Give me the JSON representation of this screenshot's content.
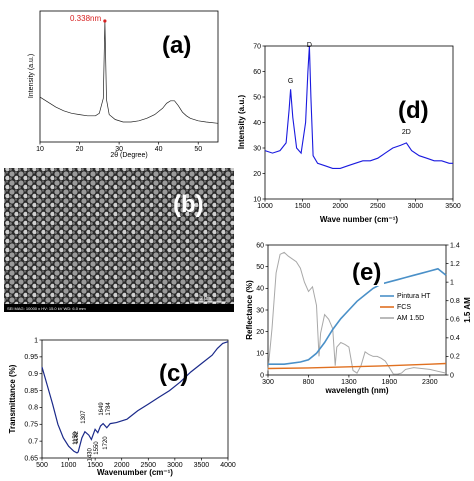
{
  "chart_data": [
    {
      "panel": "a",
      "type": "line",
      "label": "(a)",
      "xlabel": "2θ (Degree)",
      "ylabel": "Intensity (a.u.)",
      "xlim": [
        10,
        55
      ],
      "xticks": [
        10,
        20,
        30,
        40,
        50
      ],
      "annotation": "0.338nm",
      "annotation_color": "#d62020",
      "peak_x": 26.4,
      "x": [
        10,
        12,
        14,
        16,
        18,
        20,
        22,
        24,
        25,
        26,
        26.4,
        26.8,
        27.5,
        29,
        31,
        33,
        35,
        37,
        39,
        41,
        42,
        43,
        44,
        45,
        46,
        47,
        48,
        50,
        52,
        55
      ],
      "y": [
        0.36,
        0.32,
        0.28,
        0.25,
        0.23,
        0.22,
        0.21,
        0.21,
        0.23,
        0.35,
        0.97,
        0.34,
        0.22,
        0.18,
        0.16,
        0.16,
        0.17,
        0.19,
        0.22,
        0.27,
        0.31,
        0.33,
        0.33,
        0.29,
        0.24,
        0.21,
        0.19,
        0.17,
        0.16,
        0.15
      ]
    },
    {
      "panel": "b",
      "type": "image",
      "label": "(b)",
      "caption": "SEI  MAG: 10000 x  HV: 15.0 kV  WD: 6.0 mm",
      "scale_bar": "2 μm"
    },
    {
      "panel": "c",
      "type": "line",
      "label": "(c)",
      "xlabel": "Wavenumber (cm⁻¹)",
      "ylabel": "Transmittance (%)",
      "xlim": [
        500,
        4000
      ],
      "ylim": [
        0.65,
        1.0
      ],
      "xticks": [
        500,
        1000,
        1500,
        2000,
        2500,
        3000,
        3500,
        4000
      ],
      "yticks": [
        0.65,
        0.7,
        0.75,
        0.8,
        0.85,
        0.9,
        0.95,
        1.0
      ],
      "line_color": "#1b2a8a",
      "peak_labels": [
        "1182",
        "1159",
        "1307",
        "1430",
        "1550",
        "1649",
        "1784",
        "1720"
      ],
      "x": [
        500,
        600,
        700,
        800,
        900,
        1000,
        1100,
        1159,
        1182,
        1250,
        1307,
        1380,
        1430,
        1500,
        1550,
        1600,
        1649,
        1720,
        1784,
        1900,
        2100,
        2300,
        2500,
        2700,
        2900,
        3100,
        3300,
        3500,
        3700,
        3800,
        3900,
        4000
      ],
      "y": [
        0.92,
        0.865,
        0.81,
        0.75,
        0.71,
        0.685,
        0.67,
        0.665,
        0.668,
        0.71,
        0.728,
        0.718,
        0.705,
        0.735,
        0.725,
        0.745,
        0.752,
        0.74,
        0.752,
        0.755,
        0.765,
        0.79,
        0.81,
        0.83,
        0.85,
        0.875,
        0.905,
        0.93,
        0.955,
        0.975,
        0.99,
        0.995
      ]
    },
    {
      "panel": "d",
      "type": "line",
      "label": "(d)",
      "xlabel": "Wave number (cm⁻¹)",
      "ylabel": "Intensity (a.u.)",
      "xlim": [
        1000,
        3500
      ],
      "ylim": [
        10,
        70
      ],
      "xticks": [
        1000,
        1500,
        2000,
        2500,
        3000,
        3500
      ],
      "yticks": [
        10,
        20,
        30,
        40,
        50,
        60,
        70
      ],
      "line_color": "#1a1adf",
      "band_labels": [
        "G",
        "D",
        "2D"
      ],
      "band_x": [
        1340,
        1590,
        2880
      ],
      "band_y": [
        54,
        68,
        34
      ],
      "x": [
        1000,
        1100,
        1200,
        1280,
        1320,
        1340,
        1370,
        1420,
        1480,
        1540,
        1570,
        1590,
        1610,
        1640,
        1700,
        1800,
        1900,
        2000,
        2100,
        2200,
        2300,
        2400,
        2500,
        2600,
        2700,
        2800,
        2880,
        2950,
        3050,
        3150,
        3250,
        3350,
        3450,
        3500
      ],
      "y": [
        29,
        28,
        29,
        32,
        45,
        53,
        42,
        30,
        28,
        40,
        60,
        70,
        50,
        27,
        24,
        23,
        22,
        22,
        23,
        24,
        25,
        25,
        26,
        28,
        30,
        31,
        32,
        29,
        27,
        26,
        25,
        25,
        24,
        24
      ]
    },
    {
      "panel": "e",
      "type": "line",
      "label": "(e)",
      "xlabel": "wavelength (nm)",
      "ylabel": "Reflectance (%)",
      "y2label": "1.5 AM",
      "xlim": [
        300,
        2500
      ],
      "ylim": [
        0,
        60
      ],
      "y2lim": [
        0,
        1.4
      ],
      "xticks": [
        300,
        800,
        1300,
        1800,
        2300
      ],
      "yticks": [
        0,
        10,
        20,
        30,
        40,
        50,
        60
      ],
      "y2ticks": [
        0,
        0.2,
        0.4,
        0.6,
        0.8,
        1.0,
        1.2,
        1.4
      ],
      "legend_position": "right",
      "series": [
        {
          "name": "Pintura HT",
          "color": "#4a90c8",
          "axis": "left",
          "x": [
            300,
            500,
            700,
            800,
            900,
            1000,
            1100,
            1200,
            1300,
            1400,
            1500,
            1600,
            1700,
            1800,
            1900,
            2000,
            2100,
            2200,
            2300,
            2400,
            2500
          ],
          "y": [
            5,
            5,
            6,
            7,
            10,
            15,
            21,
            26,
            30,
            34,
            37,
            40,
            42,
            43,
            44,
            45,
            46,
            47,
            48,
            49,
            46
          ]
        },
        {
          "name": "FCS",
          "color": "#e07020",
          "axis": "left",
          "x": [
            300,
            800,
            1300,
            1800,
            2300,
            2500
          ],
          "y": [
            3,
            3.3,
            3.8,
            4.3,
            5.0,
            5.3
          ]
        },
        {
          "name": "AM 1.5D",
          "color": "#a8a8a8",
          "axis": "right",
          "x": [
            300,
            350,
            400,
            450,
            500,
            550,
            600,
            650,
            700,
            750,
            800,
            850,
            900,
            930,
            950,
            1000,
            1050,
            1100,
            1130,
            1150,
            1200,
            1250,
            1300,
            1350,
            1400,
            1450,
            1500,
            1550,
            1600,
            1650,
            1700,
            1750,
            1800,
            1850,
            1900,
            1950,
            2000,
            2100,
            2200,
            2300,
            2400,
            2500
          ],
          "y": [
            0.05,
            0.5,
            1.1,
            1.3,
            1.32,
            1.28,
            1.25,
            1.22,
            1.15,
            1.0,
            0.9,
            0.95,
            0.75,
            0.2,
            0.45,
            0.65,
            0.6,
            0.5,
            0.1,
            0.3,
            0.35,
            0.33,
            0.3,
            0.05,
            0.02,
            0.1,
            0.25,
            0.22,
            0.2,
            0.2,
            0.18,
            0.15,
            0.08,
            0.01,
            0.01,
            0.02,
            0.06,
            0.08,
            0.07,
            0.06,
            0.04,
            0.02
          ]
        }
      ]
    }
  ]
}
